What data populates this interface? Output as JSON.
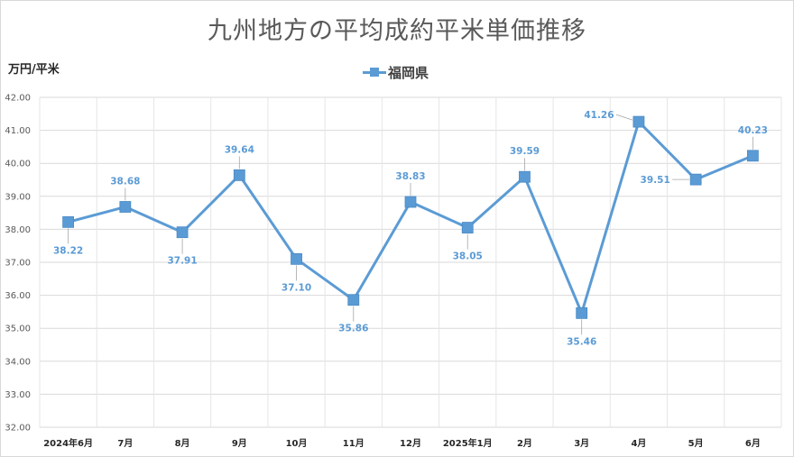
{
  "chart_data": {
    "type": "line",
    "title": "九州地方の平均成約平米単価推移",
    "ylabel": "万円/平米",
    "xlabel": "",
    "ylim": [
      32,
      42
    ],
    "y_ticks": [
      "32.00",
      "33.00",
      "34.00",
      "35.00",
      "36.00",
      "37.00",
      "38.00",
      "39.00",
      "40.00",
      "41.00",
      "42.00"
    ],
    "categories": [
      "2024年6月",
      "7月",
      "8月",
      "9月",
      "10月",
      "11月",
      "12月",
      "2025年1月",
      "2月",
      "3月",
      "4月",
      "5月",
      "6月"
    ],
    "series": [
      {
        "name": "福岡県",
        "color": "#5b9bd5",
        "values": [
          38.22,
          38.68,
          37.91,
          39.64,
          37.1,
          35.86,
          38.83,
          38.05,
          39.59,
          35.46,
          41.26,
          39.51,
          40.23
        ],
        "value_labels": [
          "38.22",
          "38.68",
          "37.91",
          "39.64",
          "37.10",
          "35.86",
          "38.83",
          "38.05",
          "39.59",
          "35.46",
          "41.26",
          "39.51",
          "40.23"
        ]
      }
    ],
    "legend_position": "top",
    "grid": true
  }
}
